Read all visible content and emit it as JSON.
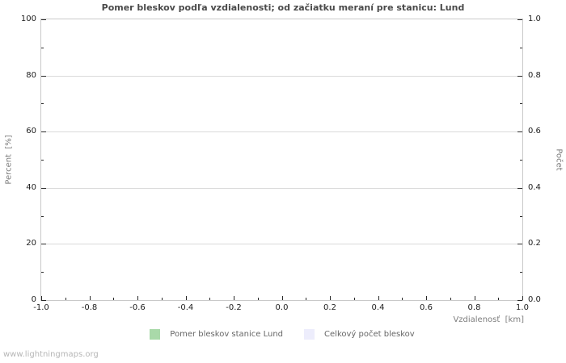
{
  "page": {
    "watermark": "www.lightningmaps.org"
  },
  "chart_data": {
    "type": "bar",
    "title": "Pomer bleskov podľa vzdialenosti; od začiatku meraní pre stanicu: Lund",
    "xlabel": "Vzdialenosť  [km]",
    "ylabel_left": "Percent  [%]",
    "ylabel_right": "Počet",
    "xlim": [
      -1.0,
      1.0
    ],
    "ylim_left": [
      0,
      100
    ],
    "ylim_right": [
      0.0,
      1.0
    ],
    "x_major_ticks": [
      "-1.0",
      "-0.8",
      "-0.6",
      "-0.4",
      "-0.2",
      "0.0",
      "0.2",
      "0.4",
      "0.6",
      "0.8",
      "1.0"
    ],
    "y_left_major_ticks": [
      "0",
      "20",
      "40",
      "60",
      "80",
      "100"
    ],
    "y_right_major_ticks": [
      "0.0",
      "0.2",
      "0.4",
      "0.6",
      "0.8",
      "1.0"
    ],
    "minor_ticks": "one between each pair of major ticks",
    "grid": "horizontal major gridlines only",
    "legend_position": "bottom-center",
    "legend": [
      {
        "label": "Pomer bleskov stanice Lund",
        "color": "#a9d9a9"
      },
      {
        "label": "Celkový počet bleskov",
        "color": "#ededfc"
      }
    ],
    "series": [
      {
        "name": "Pomer bleskov stanice Lund",
        "values": []
      },
      {
        "name": "Celkový počet bleskov",
        "values": []
      }
    ],
    "empty_plot": true,
    "colors": {
      "grid": "#d9d9d9",
      "frame": "#c9c9c9",
      "tick": "#2a2a2a",
      "title_text": "#4a4a4a",
      "tick_text": "#1c1c1c",
      "axis_label_text": "#7d7d7d",
      "legend_text": "#666666",
      "watermark_text": "#b6b6b6"
    }
  }
}
